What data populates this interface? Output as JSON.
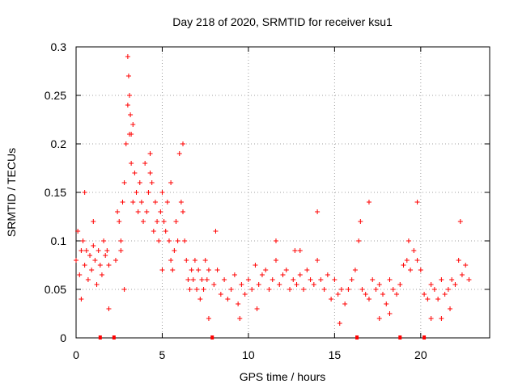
{
  "chart_data": {
    "type": "scatter",
    "title": "Day 218 of 2020, SRMTID for receiver ksu1",
    "xlabel": "GPS time / hours",
    "ylabel": "SRMTID / TECUs",
    "xlim": [
      0,
      24
    ],
    "ylim": [
      0,
      0.3
    ],
    "x_ticks": [
      0,
      5,
      10,
      15,
      20
    ],
    "x_tick_labels": [
      "0",
      "5",
      "10",
      "15",
      "20"
    ],
    "y_ticks": [
      0,
      0.05,
      0.1,
      0.15,
      0.2,
      0.25,
      0.3
    ],
    "y_tick_labels": [
      "0",
      "0.05",
      "0.1",
      "0.15",
      "0.2",
      "0.25",
      "0.3"
    ],
    "grid": true,
    "marker": "+",
    "series": [
      {
        "name": "SRMTID",
        "color": "#ff0000",
        "x": [
          0.0,
          0.1,
          0.2,
          0.3,
          0.4,
          0.5,
          0.6,
          0.7,
          0.8,
          0.9,
          1.0,
          1.1,
          1.2,
          1.3,
          1.4,
          1.5,
          1.6,
          1.7,
          1.8,
          1.9,
          2.3,
          2.4,
          2.5,
          2.6,
          2.7,
          2.8,
          2.9,
          3.0,
          3.1,
          3.2,
          3.3,
          3.4,
          3.5,
          3.6,
          3.7,
          3.8,
          3.9,
          4.0,
          4.1,
          4.2,
          4.3,
          4.4,
          4.5,
          4.6,
          4.7,
          4.8,
          4.9,
          5.0,
          5.1,
          5.2,
          5.3,
          5.4,
          5.5,
          5.6,
          5.7,
          5.8,
          5.9,
          6.0,
          6.1,
          6.2,
          6.3,
          6.4,
          6.5,
          6.6,
          6.7,
          6.8,
          6.9,
          7.0,
          7.1,
          7.2,
          7.3,
          7.4,
          7.5,
          7.6,
          7.7,
          8.0,
          8.2,
          8.4,
          8.6,
          8.8,
          9.0,
          9.2,
          9.4,
          9.6,
          9.8,
          10.0,
          10.2,
          10.4,
          10.6,
          10.8,
          11.0,
          11.2,
          11.4,
          11.6,
          11.8,
          12.0,
          12.2,
          12.4,
          12.6,
          12.8,
          13.0,
          13.2,
          13.4,
          13.6,
          13.8,
          14.0,
          14.2,
          14.4,
          14.6,
          14.8,
          15.0,
          15.2,
          15.4,
          15.6,
          15.8,
          16.0,
          16.2,
          16.4,
          16.6,
          16.8,
          17.0,
          17.2,
          17.4,
          17.6,
          17.8,
          18.0,
          18.2,
          18.4,
          18.6,
          18.8,
          19.0,
          19.2,
          19.4,
          19.6,
          19.8,
          20.0,
          20.2,
          20.4,
          20.6,
          20.8,
          21.0,
          21.2,
          21.4,
          21.6,
          21.8,
          22.0,
          22.2,
          22.4,
          22.6,
          22.8,
          3.0,
          3.05,
          3.1,
          3.15,
          3.2,
          0.5,
          6.2,
          17.0,
          19.8,
          14.0,
          8.1,
          1.0,
          2.8,
          3.3,
          4.3,
          5.5,
          9.5,
          11.6,
          13.0,
          16.5,
          18.2,
          20.6,
          21.7,
          22.3,
          0.3,
          1.9,
          2.6,
          5.0,
          7.7,
          10.5,
          12.7,
          15.3,
          17.6,
          19.3,
          21.2
        ],
        "y": [
          0.08,
          0.11,
          0.065,
          0.09,
          0.1,
          0.075,
          0.09,
          0.06,
          0.085,
          0.07,
          0.095,
          0.08,
          0.055,
          0.09,
          0.075,
          0.065,
          0.1,
          0.085,
          0.09,
          0.075,
          0.08,
          0.13,
          0.12,
          0.1,
          0.14,
          0.16,
          0.2,
          0.24,
          0.21,
          0.18,
          0.14,
          0.17,
          0.15,
          0.13,
          0.16,
          0.14,
          0.12,
          0.18,
          0.13,
          0.15,
          0.17,
          0.16,
          0.11,
          0.14,
          0.12,
          0.1,
          0.13,
          0.15,
          0.12,
          0.11,
          0.14,
          0.1,
          0.08,
          0.07,
          0.09,
          0.12,
          0.1,
          0.19,
          0.14,
          0.13,
          0.1,
          0.08,
          0.06,
          0.05,
          0.07,
          0.06,
          0.08,
          0.05,
          0.07,
          0.04,
          0.06,
          0.05,
          0.08,
          0.06,
          0.07,
          0.055,
          0.07,
          0.045,
          0.06,
          0.04,
          0.05,
          0.065,
          0.035,
          0.055,
          0.045,
          0.06,
          0.05,
          0.075,
          0.055,
          0.065,
          0.07,
          0.05,
          0.06,
          0.08,
          0.055,
          0.065,
          0.07,
          0.05,
          0.06,
          0.055,
          0.065,
          0.05,
          0.07,
          0.06,
          0.055,
          0.08,
          0.06,
          0.05,
          0.065,
          0.04,
          0.06,
          0.045,
          0.05,
          0.035,
          0.05,
          0.06,
          0.07,
          0.1,
          0.05,
          0.045,
          0.04,
          0.06,
          0.05,
          0.055,
          0.045,
          0.035,
          0.06,
          0.05,
          0.045,
          0.055,
          0.075,
          0.08,
          0.07,
          0.09,
          0.08,
          0.07,
          0.045,
          0.04,
          0.055,
          0.05,
          0.04,
          0.06,
          0.045,
          0.05,
          0.06,
          0.055,
          0.08,
          0.065,
          0.075,
          0.06,
          0.29,
          0.27,
          0.25,
          0.23,
          0.21,
          0.15,
          0.2,
          0.14,
          0.14,
          0.13,
          0.11,
          0.12,
          0.05,
          0.22,
          0.19,
          0.16,
          0.02,
          0.1,
          0.09,
          0.12,
          0.025,
          0.02,
          0.03,
          0.12,
          0.04,
          0.03,
          0.09,
          0.07,
          0.02,
          0.03,
          0.09,
          0.015,
          0.02,
          0.1,
          0.02
        ]
      }
    ],
    "data_gaps": [
      1.4,
      2.2,
      7.9,
      16.3,
      18.8,
      20.2
    ]
  }
}
